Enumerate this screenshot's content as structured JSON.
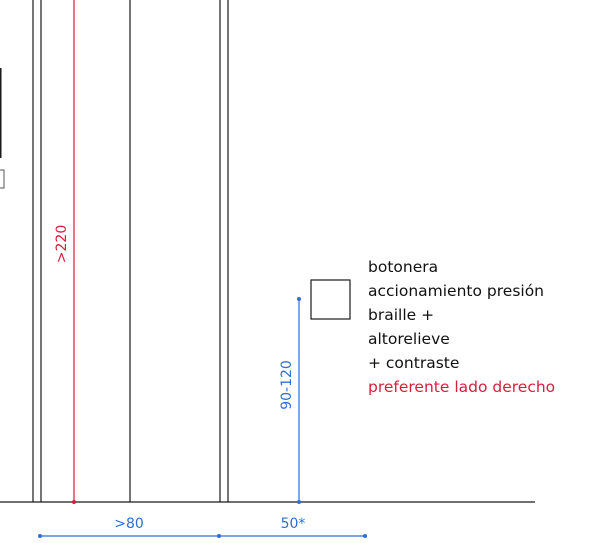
{
  "diagram": {
    "labels": {
      "height_min": ">220",
      "width_min": ">80",
      "button_height": "90-120",
      "side_offset": "50*"
    },
    "note": {
      "lines": [
        "botonera",
        "accionamiento presión",
        "braille +",
        "altorelieve",
        "+ contraste"
      ],
      "highlight": "preferente lado derecho"
    },
    "colors": {
      "line": "#1a1a1a",
      "red_dimension": "#d51f3c",
      "blue_dimension": "#2d6fd6"
    }
  }
}
